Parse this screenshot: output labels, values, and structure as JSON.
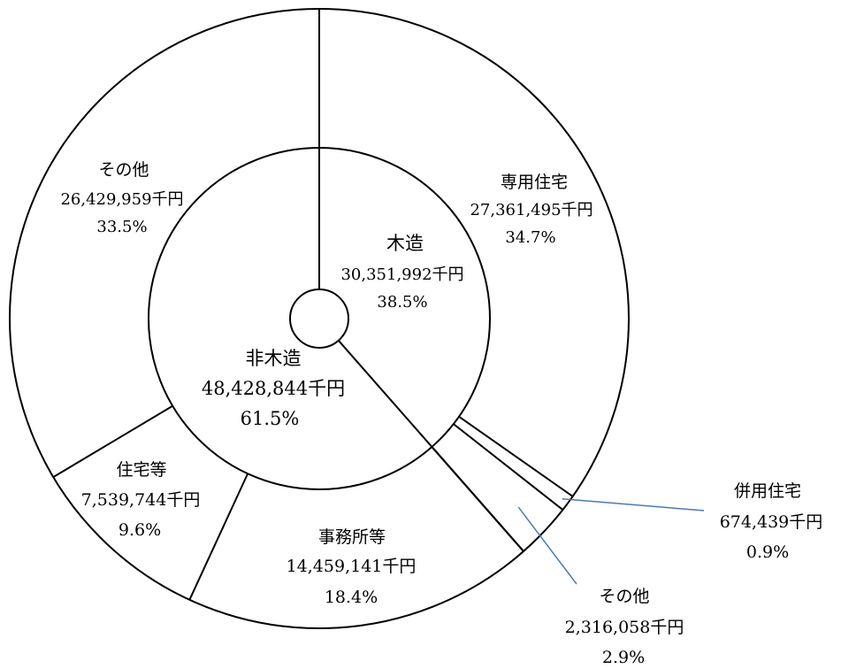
{
  "chart_data": {
    "type": "pie",
    "subtype": "donut-two-rings",
    "rings": [
      {
        "level": "inner",
        "slices": [
          {
            "name": "木造",
            "value": 30351992,
            "value_label": "30,351,992千円",
            "percent_label": "38.5%"
          },
          {
            "name": "非木造",
            "value": 48428844,
            "value_label": "48,428,844千円",
            "percent_label": "61.5%"
          }
        ]
      },
      {
        "level": "outer",
        "slices": [
          {
            "name": "専用住宅",
            "value": 27361495,
            "value_label": "27,361,495千円",
            "percent_label": "34.7%"
          },
          {
            "name": "併用住宅",
            "value": 674439,
            "value_label": "674,439千円",
            "percent_label": "0.9%"
          },
          {
            "name": "その他",
            "value": 2316058,
            "value_label": "2,316,058千円",
            "percent_label": "2.9%"
          },
          {
            "name": "事務所等",
            "value": 14459141,
            "value_label": "14,459,141千円",
            "percent_label": "18.4%"
          },
          {
            "name": "住宅等",
            "value": 7539744,
            "value_label": "7,539,744千円",
            "percent_label": "9.6%"
          },
          {
            "name": "その他",
            "value": 26429959,
            "value_label": "26,429,959千円",
            "percent_label": "33.5%"
          }
        ]
      }
    ],
    "start": "12 o'clock, clockwise",
    "colors": {
      "fill": "#ffffff",
      "stroke": "#000000",
      "leader": "#4a7ab5"
    }
  }
}
